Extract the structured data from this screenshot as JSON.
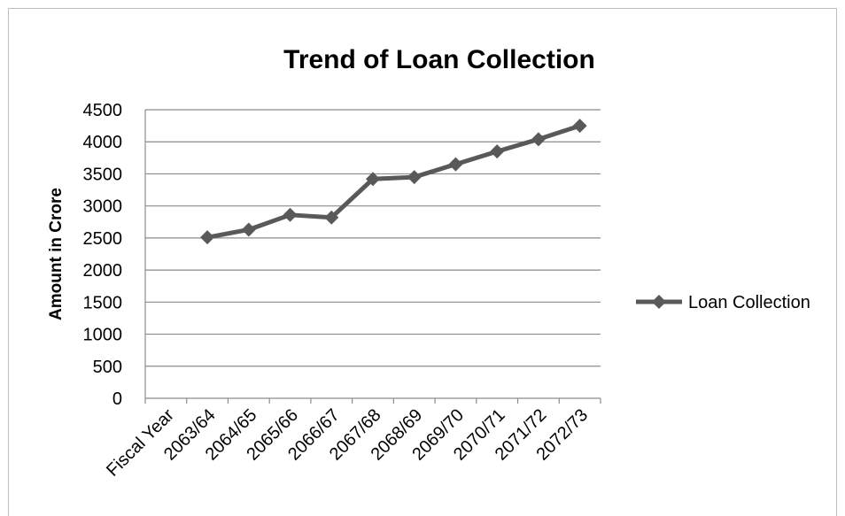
{
  "chart_data": {
    "type": "line",
    "title": "Trend of Loan Collection",
    "ylabel": "Amount in Crore",
    "xlabel": "",
    "categories": [
      "Fiscal Year",
      "2063/64",
      "2064/65",
      "2065/66",
      "2066/67",
      "2067/68",
      "2068/69",
      "2069/70",
      "2070/71",
      "2071/72",
      "2072/73"
    ],
    "series": [
      {
        "name": "Loan Collection",
        "values": [
          null,
          2510,
          2630,
          2860,
          2820,
          3420,
          3450,
          3650,
          3850,
          4040,
          4250
        ]
      }
    ],
    "ylim": [
      0,
      4500
    ],
    "yticks": [
      "0",
      "500",
      "1000",
      "1500",
      "2000",
      "2500",
      "3000",
      "3500",
      "4000",
      "4500"
    ],
    "grid": true,
    "legend_position": "right",
    "line_color": "#595959"
  }
}
